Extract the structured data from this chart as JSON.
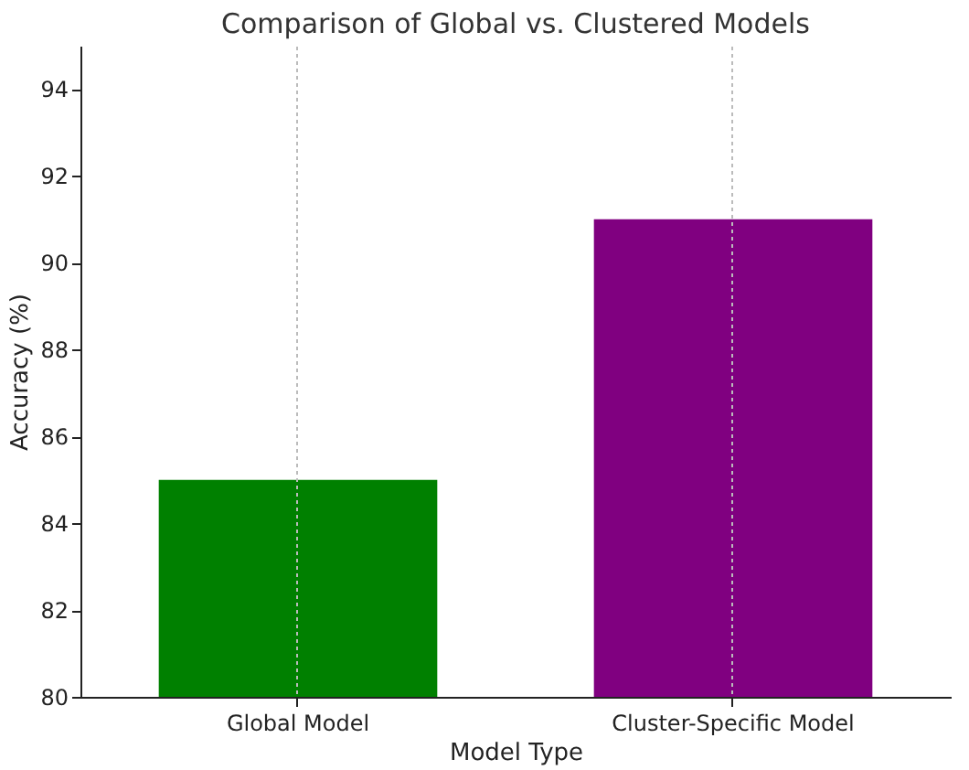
{
  "chart_data": {
    "type": "bar",
    "title": "Comparison of Global vs. Clustered Models",
    "xlabel": "Model Type",
    "ylabel": "Accuracy (%)",
    "categories": [
      "Global Model",
      "Cluster-Specific Model"
    ],
    "values": [
      85,
      91
    ],
    "colors": [
      "#008000",
      "#800080"
    ],
    "ylim": [
      80,
      95
    ],
    "yticks": [
      80,
      82,
      84,
      86,
      88,
      90,
      92,
      94
    ],
    "grid": "x"
  }
}
